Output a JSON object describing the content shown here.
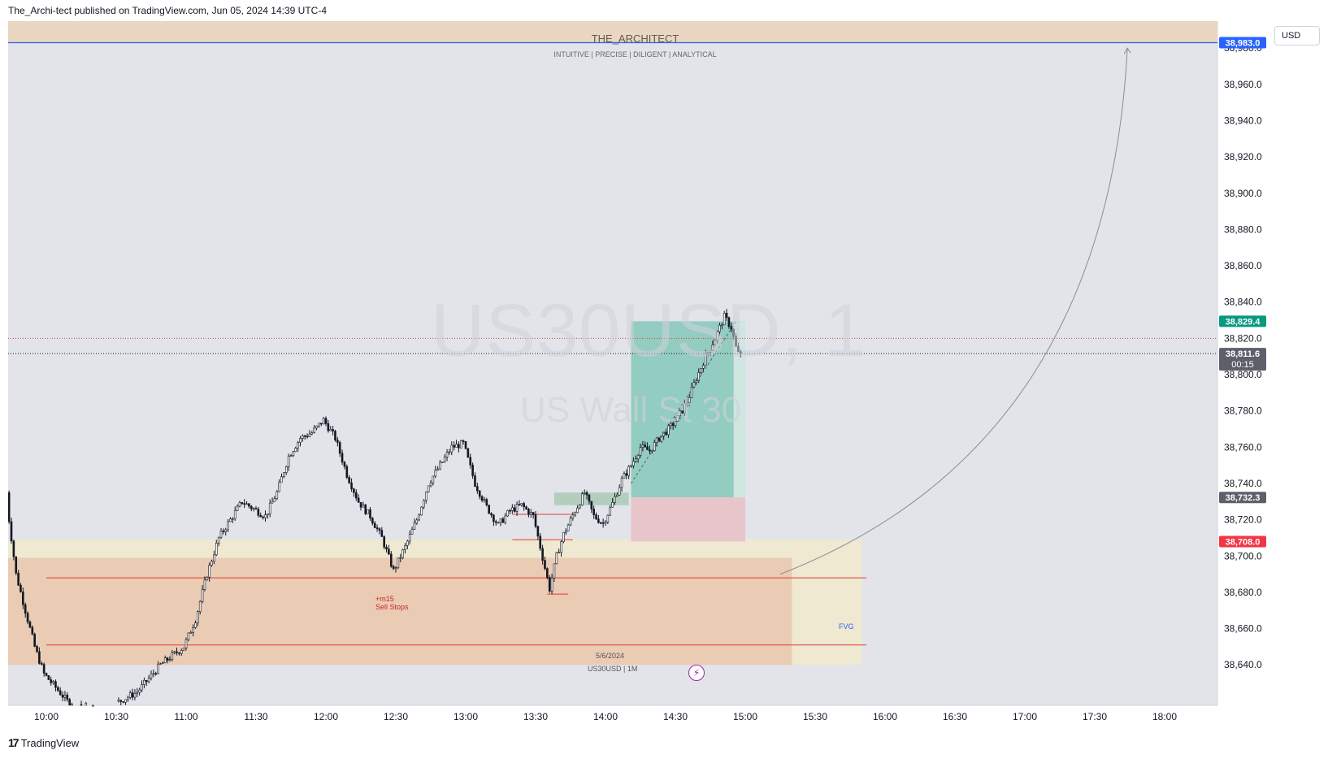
{
  "header": {
    "published_line": "The_Archi-tect published on TradingView.com, Jun 05, 2024 14:39 UTC-4"
  },
  "banner": {
    "title": "THE_ARCHITECT",
    "subtitle": "INTUITIVE | PRECISE | DILIGENT | ANALYTICAL"
  },
  "watermark": {
    "symbol": "US30USD, 1",
    "description": "US Wall St 30"
  },
  "currency_button": "USD",
  "annotations": {
    "sell_stops_line1": "+m15",
    "sell_stops_line2": "Sell Stops",
    "date_label": "5/6/2024",
    "htf_label": "US30USD | 1M",
    "fvg_label": "FVG"
  },
  "price_tags": {
    "target": "38,983.0",
    "take_profit": "38,829.4",
    "last_price": "38,811.6",
    "countdown": "00:15",
    "entry": "38,732.3",
    "stop": "38,708.0"
  },
  "footer": {
    "brand": "TradingView",
    "logo": "tv-logo-icon"
  },
  "colors": {
    "chart_bg": "#e2e4ea",
    "candle_up": "#ffffff",
    "candle_down": "#131722",
    "banner_bg": "#ead6c1",
    "target_line": "#2962ff",
    "profit_zone": "#8ecabe",
    "loss_zone": "#e8c3c9",
    "fvg_zone": "#eee9cf",
    "htf_zone": "#e9c9b1",
    "level_red": "#e53935",
    "tp_tag": "#089981",
    "stop_tag": "#f23645",
    "price_tag": "#5d606b"
  },
  "chart_data": {
    "type": "candlestick",
    "symbol": "US30USD",
    "timeframe": "1",
    "date": "Jun 05, 2024",
    "y_ticks": [
      38640,
      38660,
      38680,
      38700,
      38720,
      38740,
      38760,
      38780,
      38800,
      38820,
      38840,
      38860,
      38880,
      38900,
      38920,
      38940,
      38960,
      38980
    ],
    "x_ticks": [
      "10:00",
      "10:30",
      "11:00",
      "11:30",
      "12:00",
      "12:30",
      "13:00",
      "13:30",
      "14:00",
      "14:30",
      "15:00",
      "15:30",
      "16:00",
      "16:30",
      "17:00",
      "17:30",
      "18:00"
    ],
    "price_path": [
      [
        "09:43",
        38750
      ],
      [
        "09:45",
        38720
      ],
      [
        "09:48",
        38690
      ],
      [
        "09:52",
        38670
      ],
      [
        "09:56",
        38650
      ],
      [
        "10:00",
        38635
      ],
      [
        "10:10",
        38620
      ],
      [
        "10:25",
        38615
      ],
      [
        "10:40",
        38625
      ],
      [
        "10:50",
        38640
      ],
      [
        "11:00",
        38650
      ],
      [
        "11:05",
        38665
      ],
      [
        "11:10",
        38690
      ],
      [
        "11:15",
        38710
      ],
      [
        "11:20",
        38720
      ],
      [
        "11:25",
        38730
      ],
      [
        "11:35",
        38722
      ],
      [
        "11:40",
        38735
      ],
      [
        "11:45",
        38755
      ],
      [
        "11:50",
        38765
      ],
      [
        "11:55",
        38768
      ],
      [
        "12:00",
        38775
      ],
      [
        "12:05",
        38765
      ],
      [
        "12:10",
        38745
      ],
      [
        "12:15",
        38730
      ],
      [
        "12:20",
        38722
      ],
      [
        "12:25",
        38710
      ],
      [
        "12:30",
        38692
      ],
      [
        "12:35",
        38705
      ],
      [
        "12:40",
        38720
      ],
      [
        "12:45",
        38740
      ],
      [
        "12:50",
        38750
      ],
      [
        "12:55",
        38760
      ],
      [
        "13:00",
        38762
      ],
      [
        "13:05",
        38740
      ],
      [
        "13:10",
        38727
      ],
      [
        "13:15",
        38717
      ],
      [
        "13:20",
        38725
      ],
      [
        "13:25",
        38728
      ],
      [
        "13:30",
        38722
      ],
      [
        "13:33",
        38705
      ],
      [
        "13:37",
        38682
      ],
      [
        "13:40",
        38700
      ],
      [
        "13:43",
        38712
      ],
      [
        "13:48",
        38725
      ],
      [
        "13:52",
        38735
      ],
      [
        "13:56",
        38722
      ],
      [
        "14:00",
        38718
      ],
      [
        "14:04",
        38729
      ],
      [
        "14:08",
        38742
      ],
      [
        "14:12",
        38750
      ],
      [
        "14:16",
        38760
      ],
      [
        "14:20",
        38758
      ],
      [
        "14:24",
        38765
      ],
      [
        "14:28",
        38770
      ],
      [
        "14:32",
        38776
      ],
      [
        "14:36",
        38785
      ],
      [
        "14:40",
        38798
      ],
      [
        "14:44",
        38810
      ],
      [
        "14:48",
        38820
      ],
      [
        "14:52",
        38832
      ],
      [
        "14:55",
        38826
      ],
      [
        "14:57",
        38815
      ],
      [
        "14:58",
        38811.6
      ]
    ],
    "levels": {
      "target": 38983.0,
      "take_profit": 38829.4,
      "last_price": 38811.6,
      "entry": 38732.3,
      "stop": 38708.0,
      "sell_stops": 38688,
      "htf_low": 38651,
      "dotted_red": 38820
    },
    "zones": [
      {
        "name": "FVG",
        "from_time": "09:43",
        "to_time": "15:50",
        "low": 38640,
        "high": 38709
      },
      {
        "name": "US30USD | 1M",
        "from_time": "09:43",
        "to_time": "15:20",
        "low": 38640,
        "high": 38699
      },
      {
        "name": "profit",
        "from_time": "14:11",
        "to_time": "15:00",
        "low": 38732.3,
        "high": 38829.4
      },
      {
        "name": "loss",
        "from_time": "14:11",
        "to_time": "15:00",
        "low": 38708.0,
        "high": 38732.3
      }
    ]
  }
}
